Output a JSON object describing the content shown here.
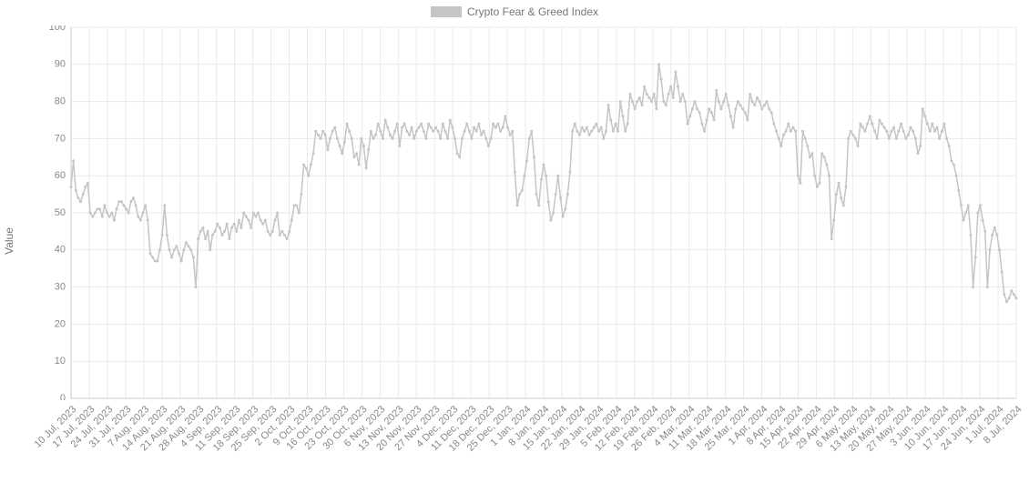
{
  "legend": {
    "label": "Crypto Fear & Greed Index"
  },
  "y_axis": {
    "title": "Value"
  },
  "chart": {
    "type": "line",
    "series_color": "#c5c5c5",
    "background_color": "#ffffff",
    "grid_color": "#eaeaea",
    "axis_color": "#cccccc",
    "tick_font_size": 11,
    "legend_font_size": 12,
    "ymin": 0,
    "ymax": 100,
    "ytick_step": 10,
    "line_width": 1.5,
    "marker_radius": 1.5,
    "x_labels": [
      "10 Jul, 2023",
      "17 Jul, 2023",
      "24 Jul, 2023",
      "31 Jul, 2023",
      "7 Aug, 2023",
      "14 Aug, 2023",
      "21 Aug, 2023",
      "28 Aug, 2023",
      "4 Sep, 2023",
      "11 Sep, 2023",
      "18 Sep, 2023",
      "25 Sep, 2023",
      "2 Oct, 2023",
      "9 Oct, 2023",
      "16 Oct, 2023",
      "23 Oct, 2023",
      "30 Oct, 2023",
      "6 Nov, 2023",
      "13 Nov, 2023",
      "20 Nov, 2023",
      "27 Nov, 2023",
      "4 Dec, 2023",
      "11 Dec, 2023",
      "18 Dec, 2023",
      "25 Dec, 2023",
      "1 Jan, 2024",
      "8 Jan, 2024",
      "15 Jan, 2024",
      "22 Jan, 2024",
      "29 Jan, 2024",
      "5 Feb, 2024",
      "12 Feb, 2024",
      "19 Feb, 2024",
      "26 Feb, 2024",
      "4 Mar, 2024",
      "11 Mar, 2024",
      "18 Mar, 2024",
      "25 Mar, 2024",
      "1 Apr, 2024",
      "8 Apr, 2024",
      "15 Apr, 2024",
      "22 Apr, 2024",
      "29 Apr, 2024",
      "6 May, 2024",
      "13 May, 2024",
      "20 May, 2024",
      "27 May, 2024",
      "3 Jun, 2024",
      "10 Jun, 2024",
      "17 Jun, 2024",
      "24 Jun, 2024",
      "1 Jul, 2024",
      "8 Jul, 2024"
    ],
    "values": [
      57,
      64,
      56,
      54,
      53,
      55,
      57,
      58,
      50,
      49,
      50,
      51,
      51,
      49,
      52,
      50,
      49,
      50,
      48,
      51,
      53,
      53,
      52,
      51,
      50,
      53,
      54,
      52,
      49,
      48,
      50,
      52,
      48,
      39,
      38,
      37,
      37,
      40,
      44,
      52,
      44,
      40,
      38,
      40,
      41,
      39,
      37,
      40,
      42,
      41,
      40,
      38,
      30,
      43,
      45,
      46,
      43,
      45,
      40,
      44,
      45,
      47,
      46,
      44,
      45,
      47,
      43,
      46,
      47,
      45,
      48,
      46,
      50,
      49,
      48,
      46,
      50,
      49,
      50,
      48,
      47,
      48,
      45,
      44,
      45,
      48,
      50,
      44,
      45,
      44,
      43,
      45,
      48,
      52,
      52,
      50,
      55,
      63,
      62,
      60,
      63,
      66,
      72,
      71,
      70,
      72,
      71,
      67,
      70,
      72,
      73,
      70,
      68,
      66,
      69,
      74,
      72,
      70,
      65,
      66,
      63,
      70,
      68,
      62,
      67,
      72,
      70,
      71,
      74,
      72,
      70,
      75,
      73,
      71,
      70,
      72,
      74,
      68,
      73,
      74,
      72,
      71,
      73,
      70,
      72,
      73,
      74,
      72,
      70,
      74,
      73,
      72,
      73,
      72,
      70,
      74,
      72,
      70,
      75,
      73,
      70,
      66,
      65,
      70,
      72,
      74,
      72,
      70,
      73,
      72,
      74,
      71,
      72,
      70,
      68,
      70,
      74,
      73,
      74,
      72,
      73,
      76,
      73,
      71,
      72,
      61,
      52,
      55,
      56,
      60,
      64,
      70,
      72,
      65,
      55,
      52,
      59,
      63,
      60,
      53,
      48,
      50,
      55,
      60,
      54,
      49,
      51,
      55,
      61,
      72,
      74,
      72,
      71,
      73,
      72,
      73,
      71,
      72,
      73,
      74,
      72,
      73,
      70,
      72,
      79,
      75,
      72,
      74,
      72,
      80,
      76,
      72,
      74,
      82,
      80,
      78,
      80,
      81,
      79,
      84,
      82,
      81,
      80,
      82,
      78,
      90,
      86,
      80,
      79,
      82,
      84,
      81,
      88,
      84,
      80,
      82,
      80,
      74,
      76,
      78,
      80,
      78,
      77,
      74,
      72,
      75,
      78,
      77,
      75,
      83,
      80,
      78,
      80,
      82,
      79,
      76,
      73,
      78,
      80,
      79,
      78,
      77,
      75,
      82,
      80,
      79,
      81,
      80,
      78,
      79,
      80,
      78,
      77,
      74,
      72,
      70,
      68,
      71,
      72,
      74,
      72,
      73,
      72,
      60,
      58,
      72,
      70,
      68,
      65,
      66,
      60,
      57,
      58,
      66,
      65,
      63,
      60,
      43,
      48,
      55,
      58,
      54,
      52,
      57,
      70,
      72,
      71,
      70,
      68,
      74,
      73,
      72,
      74,
      76,
      74,
      72,
      70,
      75,
      74,
      73,
      72,
      70,
      72,
      73,
      70,
      72,
      74,
      72,
      70,
      71,
      73,
      72,
      70,
      66,
      68,
      78,
      76,
      74,
      72,
      74,
      72,
      73,
      70,
      72,
      74,
      70,
      68,
      64,
      63,
      60,
      56,
      52,
      48,
      50,
      52,
      44,
      30,
      38,
      50,
      52,
      48,
      45,
      30,
      40,
      44,
      46,
      44,
      40,
      34,
      28,
      26,
      27,
      29,
      28,
      27
    ]
  }
}
